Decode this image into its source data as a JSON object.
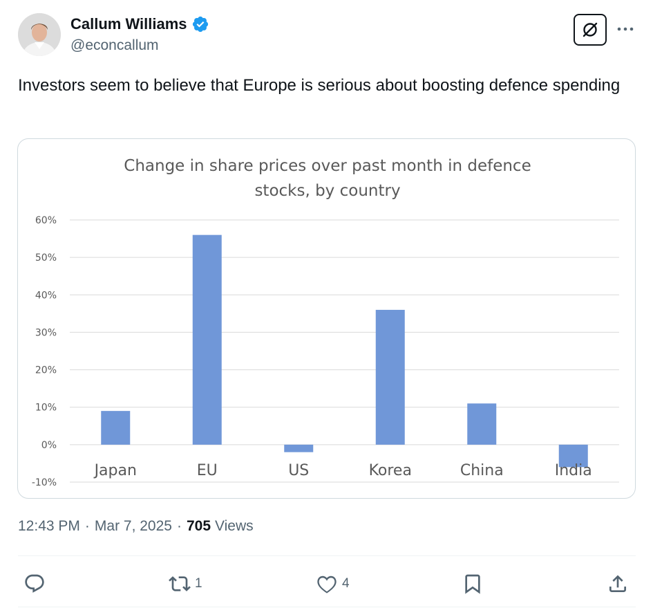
{
  "author": {
    "display_name": "Callum Williams",
    "handle": "@econcallum",
    "verified": true
  },
  "tweet": {
    "text": "Investors seem to believe that Europe is serious about boosting defence spending",
    "time": "12:43 PM",
    "date": "Mar 7, 2025",
    "views_count": "705",
    "views_label": "Views"
  },
  "actions": {
    "reply_count": "",
    "retweet_count": "1",
    "like_count": "4"
  },
  "icons": {
    "grok": "grok-icon",
    "more": "more-horizontal-icon",
    "reply": "reply-icon",
    "retweet": "retweet-icon",
    "like": "heart-icon",
    "bookmark": "bookmark-icon",
    "share": "share-icon"
  },
  "colors": {
    "verified": "#1d9bf0",
    "bar": "#7097d8",
    "secondary_text": "#536471"
  },
  "chart_data": {
    "type": "bar",
    "title": "Change in share prices over past month in defence stocks, by country",
    "categories": [
      "Japan",
      "EU",
      "US",
      "Korea",
      "China",
      "India"
    ],
    "values": [
      9,
      56,
      -2,
      36,
      11,
      -6
    ],
    "unit": "%",
    "ylim": [
      -10,
      60
    ],
    "yticks": [
      -10,
      0,
      10,
      20,
      30,
      40,
      50,
      60
    ],
    "ytick_labels": [
      "-10%",
      "0%",
      "10%",
      "20%",
      "30%",
      "40%",
      "50%",
      "60%"
    ],
    "grid": true,
    "legend": "none"
  }
}
